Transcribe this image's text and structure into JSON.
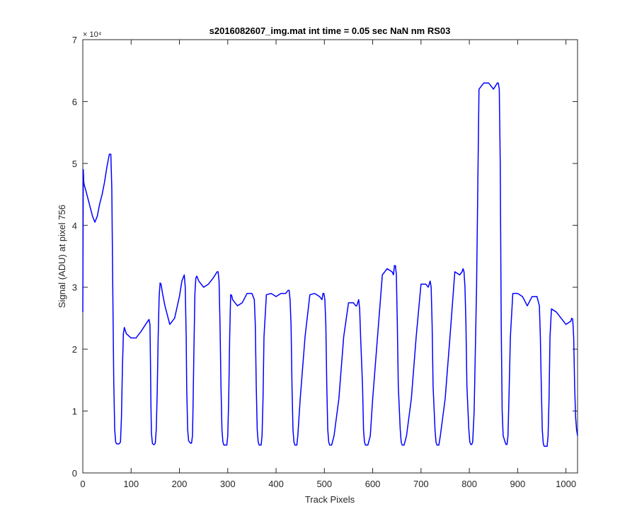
{
  "chart_data": {
    "type": "line",
    "title": "s2016082607_img.mat int time = 0.05 sec  NaN nm RS03",
    "xlabel": "Track Pixels",
    "ylabel": "Signal (ADU) at pixel 756",
    "xlim": [
      0,
      1024
    ],
    "ylim": [
      0,
      70000
    ],
    "x_ticks": [
      0,
      100,
      200,
      300,
      400,
      500,
      600,
      700,
      800,
      900,
      1000
    ],
    "x_tick_labels": [
      "0",
      "100",
      "200",
      "300",
      "400",
      "500",
      "600",
      "700",
      "800",
      "900",
      "1000"
    ],
    "y_ticks": [
      0,
      10000,
      20000,
      30000,
      40000,
      50000,
      60000,
      70000
    ],
    "y_tick_labels": [
      "0",
      "1",
      "2",
      "3",
      "4",
      "5",
      "6",
      "7"
    ],
    "y_multiplier": "× 10⁴",
    "grid": false,
    "series_color": "#0000ff",
    "series": [
      {
        "x": [
          0,
          1,
          2,
          3,
          5,
          10,
          15,
          20,
          25,
          30,
          35,
          40,
          45,
          50,
          55,
          58,
          60,
          62,
          64,
          66,
          68,
          70,
          72,
          75,
          78,
          80,
          82,
          84,
          86,
          88,
          90,
          100,
          110,
          120,
          130,
          137,
          139,
          140,
          141,
          142,
          144,
          146,
          148,
          150,
          152,
          154,
          156,
          158,
          160,
          162,
          165,
          170,
          180,
          190,
          200,
          205,
          210,
          212,
          214,
          215,
          217,
          219,
          221,
          223,
          225,
          227,
          228,
          230,
          232,
          234,
          236,
          240,
          250,
          260,
          270,
          278,
          280,
          282,
          284,
          286,
          288,
          290,
          292,
          296,
          298,
          300,
          302,
          304,
          306,
          308,
          310,
          320,
          330,
          340,
          350,
          355,
          357,
          359,
          361,
          363,
          365,
          367,
          369,
          371,
          373,
          375,
          380,
          390,
          400,
          410,
          420,
          425,
          427,
          429,
          431,
          433,
          435,
          437,
          439,
          441,
          443,
          445,
          450,
          460,
          470,
          480,
          490,
          495,
          497,
          499,
          501,
          503,
          505,
          507,
          509,
          511,
          513,
          515,
          520,
          530,
          540,
          550,
          560,
          565,
          567,
          569,
          571,
          573,
          575,
          579,
          581,
          583,
          585,
          587,
          590,
          595,
          600,
          610,
          620,
          630,
          640,
          643,
          645,
          647,
          649,
          651,
          653,
          657,
          659,
          661,
          663,
          665,
          670,
          680,
          690,
          700,
          710,
          715,
          717,
          719,
          721,
          723,
          725,
          729,
          731,
          733,
          735,
          737,
          740,
          750,
          760,
          770,
          780,
          785,
          787,
          789,
          791,
          793,
          795,
          799,
          801,
          803,
          805,
          807,
          810,
          815,
          820,
          830,
          840,
          850,
          858,
          860,
          862,
          864,
          866,
          868,
          870,
          874,
          876,
          878,
          880,
          882,
          885,
          890,
          900,
          910,
          920,
          930,
          940,
          945,
          947,
          949,
          951,
          953,
          955,
          959,
          961,
          963,
          965,
          967,
          970,
          980,
          990,
          1000,
          1010,
          1012,
          1014,
          1016,
          1018,
          1020,
          1022,
          1024
        ],
        "y": [
          26000,
          49000,
          47000,
          46500,
          46000,
          44500,
          43000,
          41500,
          40500,
          41500,
          43500,
          45000,
          47000,
          49500,
          51500,
          51500,
          46000,
          30000,
          15000,
          7000,
          5000,
          4700,
          4700,
          4700,
          5000,
          9000,
          17000,
          22500,
          23500,
          23000,
          22500,
          21800,
          21800,
          22800,
          24000,
          24800,
          24000,
          18000,
          11000,
          6500,
          4800,
          4600,
          4600,
          4800,
          7000,
          13000,
          22000,
          28500,
          30700,
          30500,
          29000,
          27000,
          24000,
          25000,
          28500,
          31000,
          32000,
          30000,
          22000,
          14000,
          7000,
          5200,
          5000,
          4800,
          4800,
          6000,
          10000,
          20000,
          29000,
          31500,
          31800,
          31000,
          30000,
          30500,
          31500,
          32500,
          32500,
          31000,
          24000,
          14000,
          7000,
          5000,
          4500,
          4500,
          4500,
          6000,
          12000,
          22000,
          28800,
          28700,
          28000,
          27000,
          27500,
          29000,
          29000,
          28000,
          24000,
          14000,
          7000,
          5000,
          4500,
          4500,
          4500,
          6000,
          12000,
          22000,
          28800,
          29000,
          28500,
          29000,
          29000,
          29500,
          29500,
          28000,
          24000,
          14000,
          7000,
          5000,
          4500,
          4500,
          4500,
          6000,
          12000,
          22000,
          28800,
          29000,
          28500,
          28000,
          29000,
          29000,
          28000,
          24000,
          14000,
          7000,
          5000,
          4500,
          4500,
          4500,
          6000,
          12000,
          22000,
          27500,
          27500,
          27000,
          27000,
          27500,
          28000,
          26500,
          22000,
          14000,
          7000,
          5000,
          4500,
          4500,
          4500,
          6000,
          12000,
          22000,
          32000,
          33000,
          32500,
          32000,
          33500,
          33500,
          32000,
          24000,
          14000,
          7000,
          5000,
          4500,
          4500,
          4500,
          6000,
          12000,
          22000,
          30500,
          30500,
          30000,
          30500,
          31000,
          30000,
          24000,
          14000,
          7000,
          5000,
          4500,
          4500,
          4500,
          6000,
          12000,
          22000,
          32500,
          32000,
          32500,
          33000,
          32500,
          30000,
          24000,
          14000,
          7000,
          5000,
          4600,
          4600,
          5000,
          10000,
          30000,
          62000,
          63000,
          63000,
          62000,
          63000,
          63000,
          62000,
          50000,
          24000,
          10000,
          6000,
          5000,
          4600,
          4600,
          6000,
          12000,
          22000,
          29000,
          29000,
          28500,
          27000,
          28500,
          28500,
          27000,
          22000,
          14000,
          7000,
          4800,
          4300,
          4300,
          4300,
          6000,
          12000,
          22000,
          26500,
          26000,
          25000,
          24000,
          24500,
          25000,
          24800,
          22000,
          14000,
          9000,
          7000,
          6000
        ]
      }
    ]
  }
}
